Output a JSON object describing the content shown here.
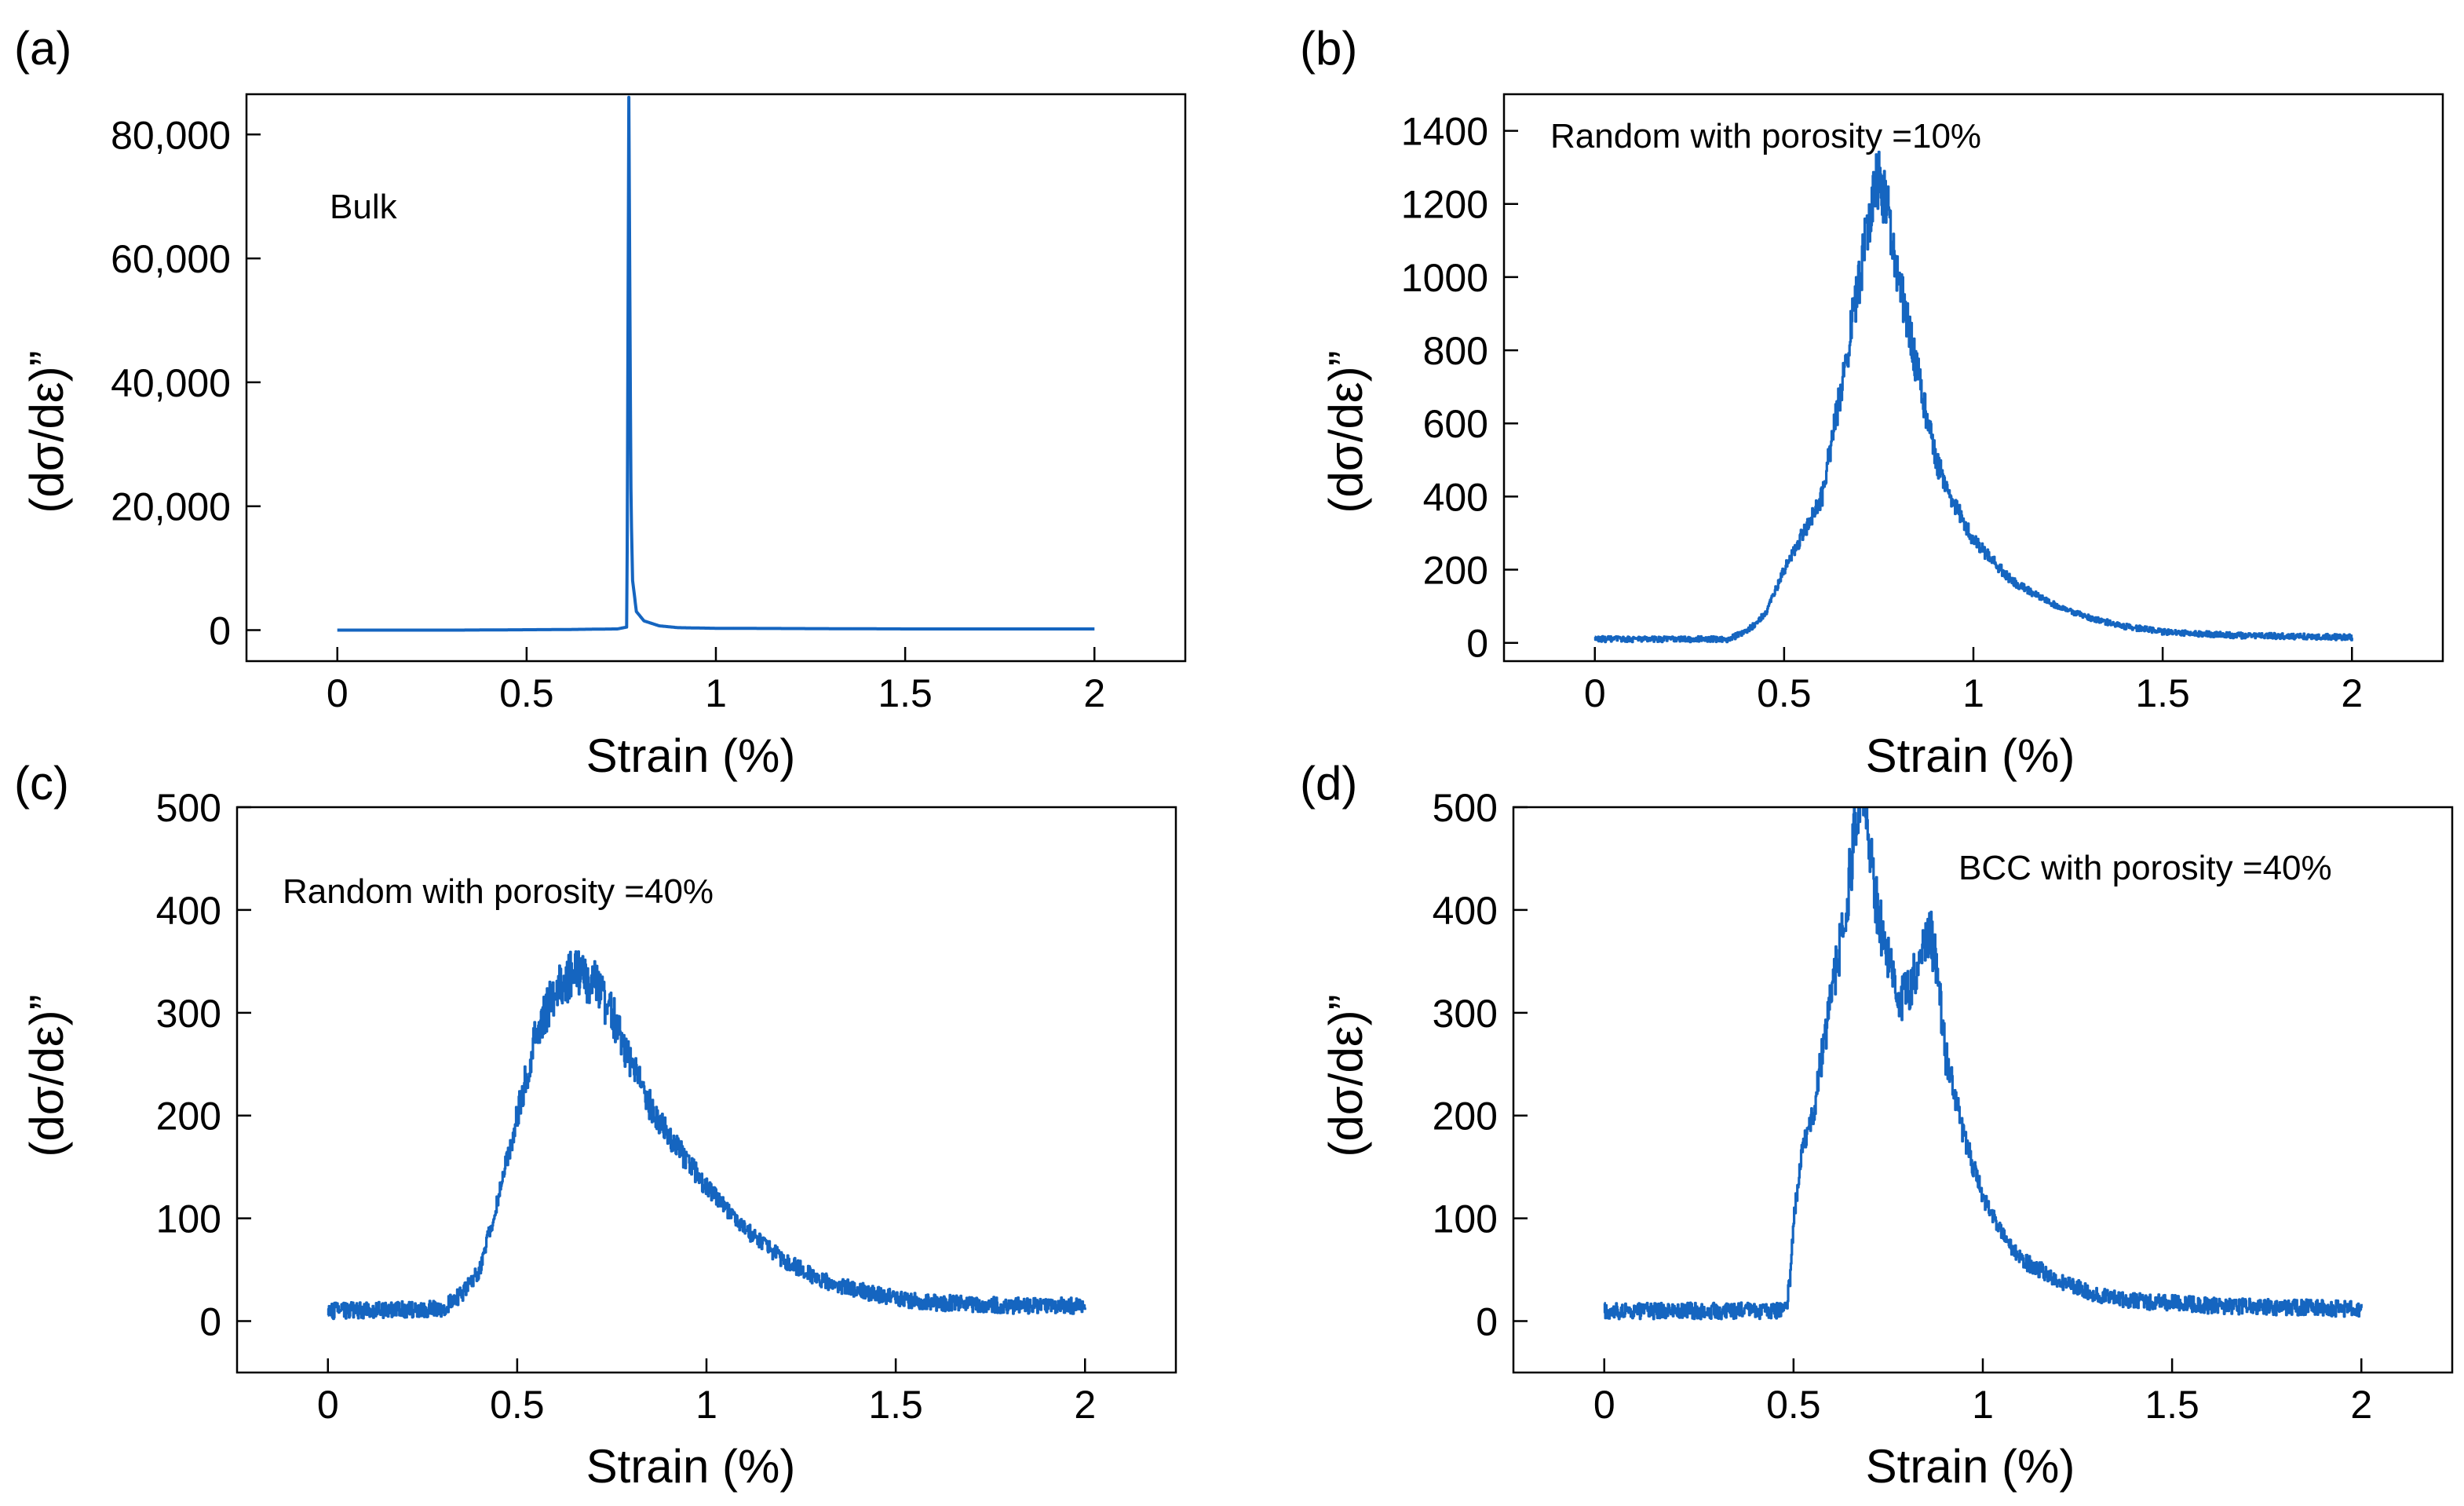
{
  "chart_data": [
    {
      "type": "line",
      "panel_label": "(a)",
      "annotation": "Bulk",
      "xlabel": "Strain (%)",
      "ylabel": "(dσ/dε)”",
      "xlim": [
        -0.24,
        2.24
      ],
      "ylim": [
        -5000,
        86500
      ],
      "xticks": [
        0,
        0.5,
        1,
        1.5,
        2
      ],
      "xtick_labels": [
        "0",
        "0.5",
        "1",
        "1.5",
        "2"
      ],
      "yticks": [
        0,
        20000,
        40000,
        60000,
        80000
      ],
      "ytick_labels": [
        "0",
        "20,000",
        "40,000",
        "60,000",
        "80,000"
      ],
      "grid": false,
      "line_color": "#1565c0",
      "series": [
        {
          "x": [
            0,
            0.3,
            0.6,
            0.74,
            0.765,
            0.77,
            0.773,
            0.776,
            0.78,
            0.79,
            0.81,
            0.85,
            0.9,
            1.0,
            1.5,
            2.0
          ],
          "y": [
            0,
            0,
            100,
            200,
            500,
            86000,
            50000,
            20000,
            8000,
            3000,
            1500,
            700,
            400,
            300,
            200,
            200
          ]
        }
      ]
    },
    {
      "type": "line",
      "panel_label": "(b)",
      "annotation": "Random with porosity =10%",
      "xlabel": "Strain (%)",
      "ylabel": "(dσ/dε)”",
      "xlim": [
        -0.24,
        2.24
      ],
      "ylim": [
        -50,
        1500
      ],
      "xticks": [
        0,
        0.5,
        1,
        1.5,
        2
      ],
      "xtick_labels": [
        "0",
        "0.5",
        "1",
        "1.5",
        "2"
      ],
      "yticks": [
        0,
        200,
        400,
        600,
        800,
        1000,
        1200,
        1400
      ],
      "ytick_labels": [
        "0",
        "200",
        "400",
        "600",
        "800",
        "1000",
        "1200",
        "1400"
      ],
      "grid": false,
      "line_color": "#1565c0",
      "series": [
        {
          "x": [
            0,
            0.35,
            0.4,
            0.45,
            0.5,
            0.55,
            0.6,
            0.65,
            0.7,
            0.73,
            0.75,
            0.77,
            0.8,
            0.85,
            0.9,
            0.95,
            1.0,
            1.1,
            1.2,
            1.3,
            1.4,
            1.5,
            1.7,
            2.0
          ],
          "y": [
            10,
            10,
            30,
            80,
            200,
            300,
            400,
            700,
            1000,
            1200,
            1280,
            1200,
            1000,
            750,
            500,
            380,
            280,
            170,
            110,
            70,
            45,
            30,
            20,
            15
          ]
        }
      ]
    },
    {
      "type": "line",
      "panel_label": "(c)",
      "annotation": "Random with porosity =40%",
      "xlabel": "Strain (%)",
      "ylabel": "(dσ/dε)”",
      "xlim": [
        -0.24,
        2.24
      ],
      "ylim": [
        -50,
        500
      ],
      "xticks": [
        0,
        0.5,
        1,
        1.5,
        2
      ],
      "xtick_labels": [
        "0",
        "0.5",
        "1",
        "1.5",
        "2"
      ],
      "yticks": [
        0,
        100,
        200,
        300,
        400,
        500
      ],
      "ytick_labels": [
        "0",
        "100",
        "200",
        "300",
        "400",
        "500"
      ],
      "grid": false,
      "line_color": "#1565c0",
      "series": [
        {
          "x": [
            0,
            0.3,
            0.35,
            0.4,
            0.45,
            0.5,
            0.55,
            0.6,
            0.65,
            0.7,
            0.75,
            0.8,
            0.85,
            0.9,
            1.0,
            1.1,
            1.2,
            1.3,
            1.4,
            1.5,
            1.6,
            1.8,
            2.0
          ],
          "y": [
            10,
            12,
            25,
            50,
            120,
            200,
            280,
            320,
            340,
            330,
            300,
            250,
            210,
            180,
            130,
            90,
            60,
            40,
            30,
            22,
            18,
            15,
            15
          ]
        }
      ]
    },
    {
      "type": "line",
      "panel_label": "(d)",
      "annotation": "BCC with porosity =40%",
      "xlabel": "Strain (%)",
      "ylabel": "(dσ/dε)”",
      "xlim": [
        -0.24,
        2.24
      ],
      "ylim": [
        -50,
        500
      ],
      "xticks": [
        0,
        0.5,
        1,
        1.5,
        2
      ],
      "xtick_labels": [
        "0",
        "0.5",
        "1",
        "1.5",
        "2"
      ],
      "yticks": [
        0,
        100,
        200,
        300,
        400,
        500
      ],
      "ytick_labels": [
        "0",
        "100",
        "200",
        "300",
        "400",
        "500"
      ],
      "grid": false,
      "line_color": "#1565c0",
      "series": [
        {
          "x": [
            0,
            0.48,
            0.49,
            0.5,
            0.52,
            0.55,
            0.58,
            0.6,
            0.63,
            0.66,
            0.68,
            0.7,
            0.72,
            0.75,
            0.78,
            0.8,
            0.83,
            0.86,
            0.88,
            0.9,
            0.95,
            1.0,
            1.05,
            1.1,
            1.2,
            1.3,
            1.4,
            1.6,
            2.0
          ],
          "y": [
            10,
            10,
            40,
            100,
            160,
            200,
            270,
            320,
            380,
            470,
            500,
            470,
            400,
            350,
            310,
            320,
            350,
            380,
            340,
            260,
            180,
            120,
            85,
            60,
            40,
            25,
            20,
            15,
            12
          ]
        }
      ]
    }
  ]
}
